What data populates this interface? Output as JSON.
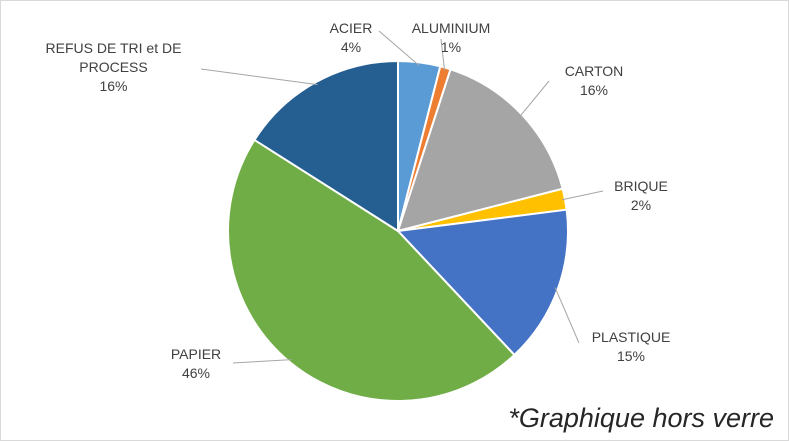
{
  "chart_data": {
    "type": "pie",
    "categories": [
      "ACIER",
      "ALUMINIUM",
      "CARTON",
      "BRIQUE",
      "PLASTIQUE",
      "PAPIER",
      "REFUS DE TRI et DE PROCESS"
    ],
    "values": [
      4,
      1,
      16,
      2,
      15,
      46,
      16
    ],
    "value_labels": [
      "4%",
      "1%",
      "16%",
      "2%",
      "15%",
      "46%",
      "16%"
    ],
    "colors": [
      "#5b9bd5",
      "#ed7d31",
      "#a5a5a5",
      "#ffc000",
      "#4472c4",
      "#70ad47",
      "#255e91"
    ],
    "annotation": "*Graphique hors verre"
  }
}
